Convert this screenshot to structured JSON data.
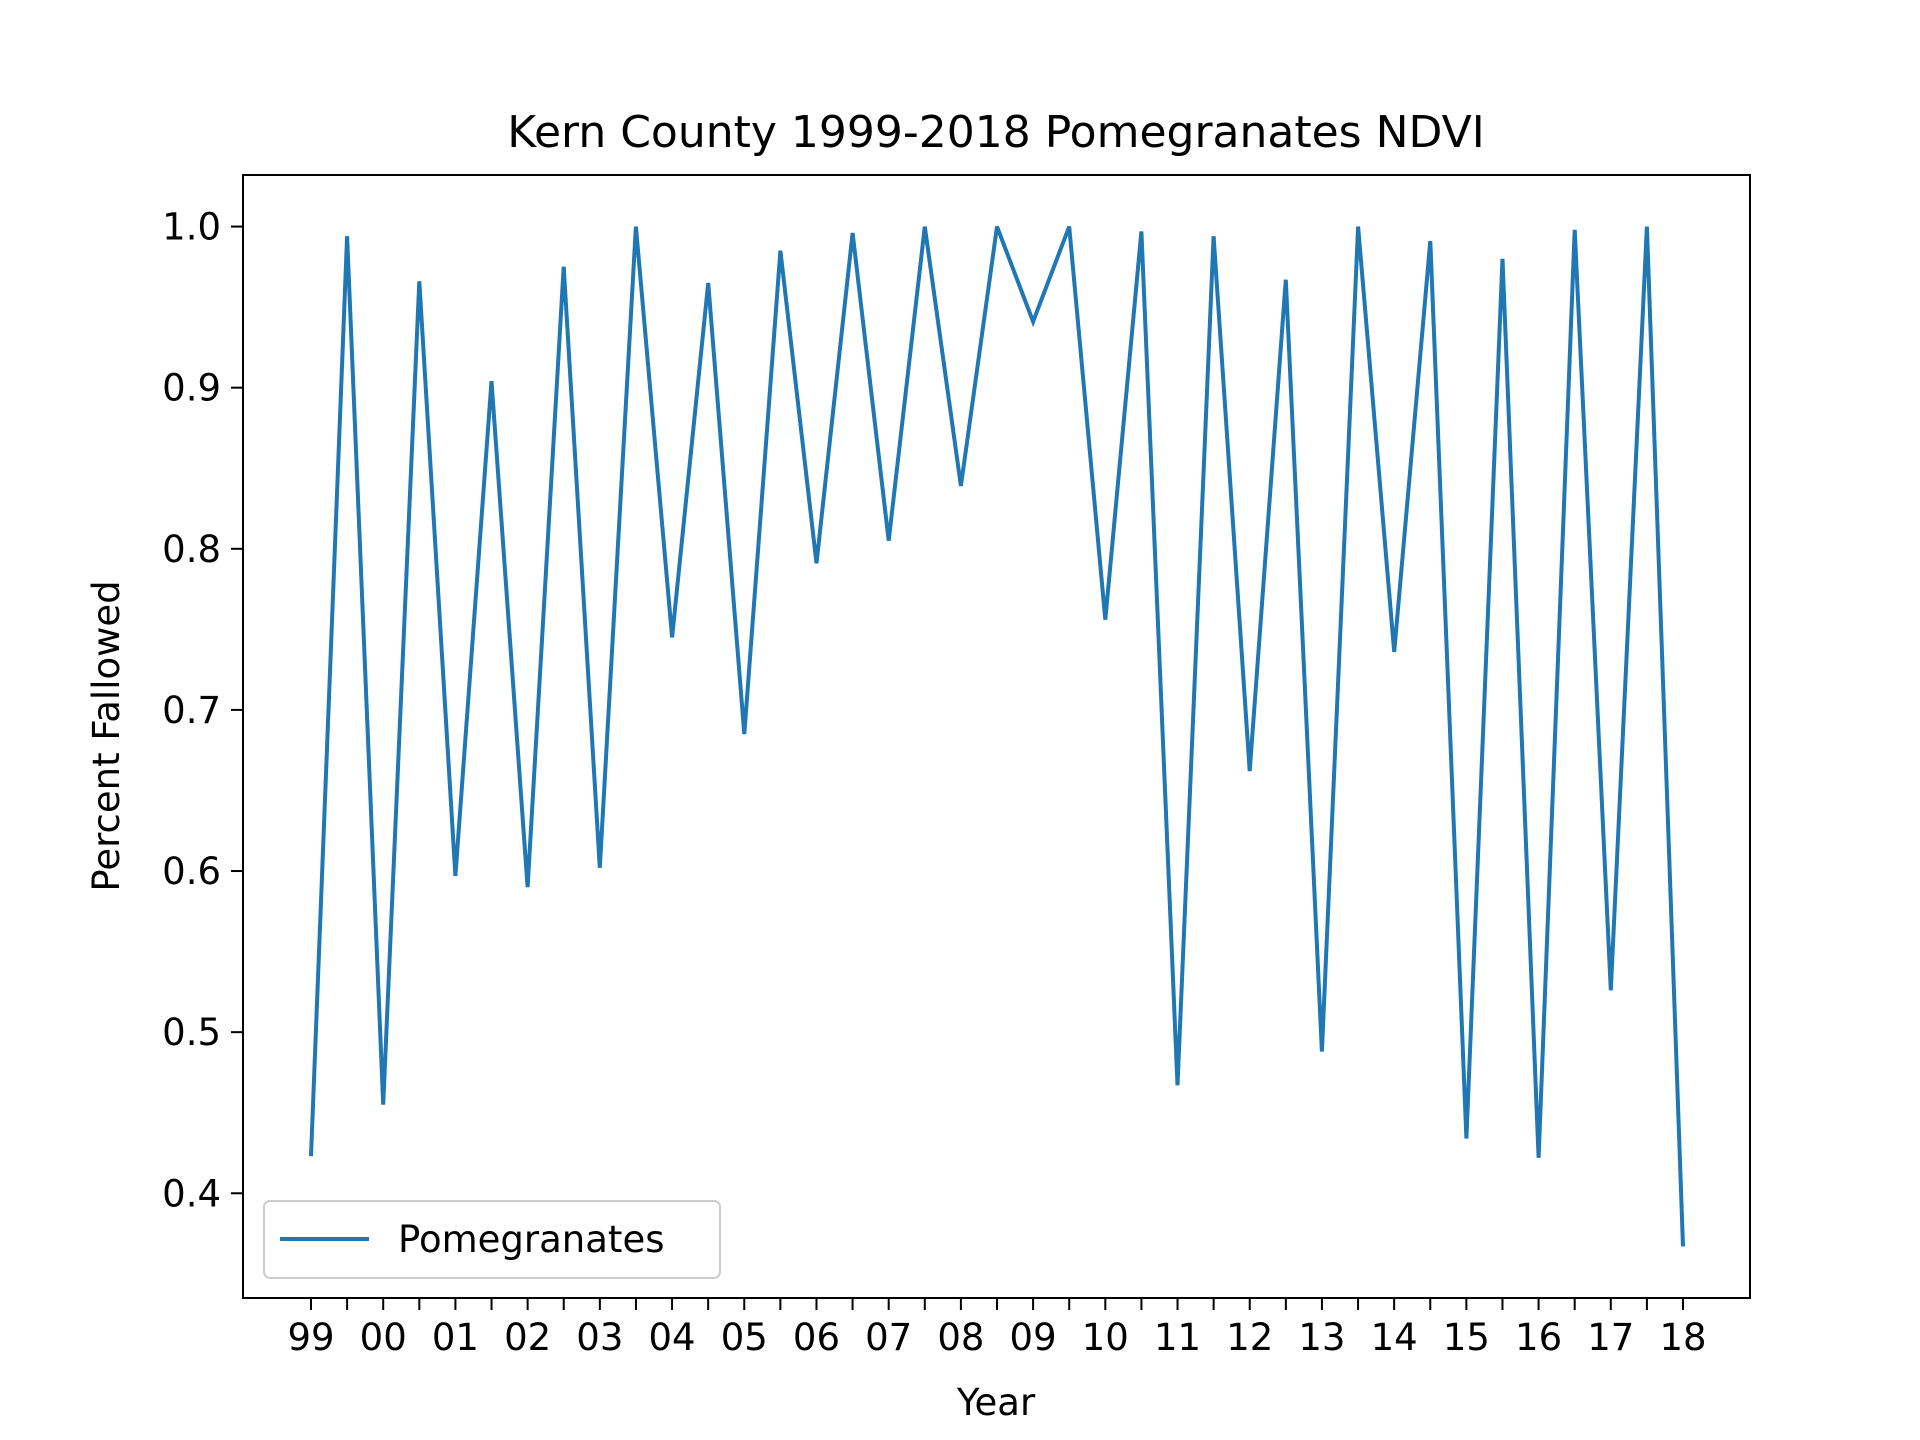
{
  "chart_data": {
    "type": "line",
    "title": "Kern County 1999-2018 Pomegranates NDVI",
    "xlabel": "Year",
    "ylabel": "Percent Fallowed",
    "xtick_labels": [
      "99",
      "00",
      "01",
      "02",
      "03",
      "04",
      "05",
      "06",
      "07",
      "08",
      "09",
      "10",
      "11",
      "12",
      "13",
      "14",
      "15",
      "16",
      "17",
      "18"
    ],
    "yticks": [
      0.4,
      0.5,
      0.6,
      0.7,
      0.8,
      0.9,
      1.0
    ],
    "ytick_labels": [
      "0.4",
      "0.5",
      "0.6",
      "0.7",
      "0.8",
      "0.9",
      "1.0"
    ],
    "ylim": [
      0.335,
      1.032
    ],
    "grid": false,
    "legend_position": "bottom-left",
    "series": [
      {
        "name": "Pomegranates",
        "color": "#1f77b4",
        "values": [
          0.423,
          0.994,
          0.455,
          0.966,
          0.597,
          0.904,
          0.59,
          0.975,
          0.602,
          1.0,
          0.745,
          0.965,
          0.685,
          0.985,
          0.791,
          0.996,
          0.805,
          1.0,
          0.839,
          1.0,
          0.941,
          1.0,
          0.756,
          0.997,
          0.467,
          0.994,
          0.662,
          0.967,
          0.488,
          1.0,
          0.736,
          0.991,
          0.434,
          0.98,
          0.422,
          0.998,
          0.526,
          1.0,
          0.367
        ]
      }
    ]
  }
}
